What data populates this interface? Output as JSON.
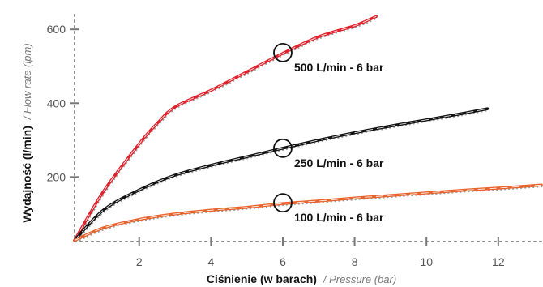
{
  "chart_data": {
    "type": "line",
    "title": "",
    "xlabel": {
      "main": "Ciśnienie (w barach)",
      "sub": "/ Pressure (bar)"
    },
    "ylabel": {
      "main": "Wydajność (l/min)",
      "sub": "/ Flow rate (lpm)"
    },
    "xlim": [
      0.2,
      13.2
    ],
    "ylim": [
      25,
      640
    ],
    "xticks": [
      2,
      4,
      6,
      8,
      10,
      12
    ],
    "yticks": [
      200,
      400,
      600
    ],
    "grid": false,
    "series": [
      {
        "name": "500 L/min - 6 bar",
        "color": "#e0202a",
        "x": [
          0.2,
          1,
          2,
          2.5,
          3,
          4,
          5,
          6,
          7,
          8,
          8.6
        ],
        "y": [
          28,
          160,
          290,
          345,
          390,
          435,
          485,
          535,
          580,
          610,
          635
        ],
        "marker": {
          "x": 6,
          "y": 537
        }
      },
      {
        "name": "250 L/min - 6 bar",
        "color": "#111111",
        "x": [
          0.2,
          1,
          2,
          3,
          4,
          5,
          6,
          7,
          8,
          9,
          10,
          11,
          11.7
        ],
        "y": [
          28,
          110,
          165,
          205,
          232,
          255,
          278,
          300,
          320,
          338,
          355,
          372,
          385
        ],
        "marker": {
          "x": 6,
          "y": 278
        }
      },
      {
        "name": "100 L/min - 6 bar",
        "color": "#e8622c",
        "x": [
          0.2,
          1,
          2,
          3,
          4,
          5,
          6,
          7,
          8,
          9,
          10,
          11,
          12,
          13.2
        ],
        "y": [
          28,
          62,
          85,
          100,
          110,
          118,
          128,
          135,
          143,
          150,
          157,
          164,
          170,
          178
        ],
        "marker": {
          "x": 6,
          "y": 130
        }
      }
    ]
  }
}
